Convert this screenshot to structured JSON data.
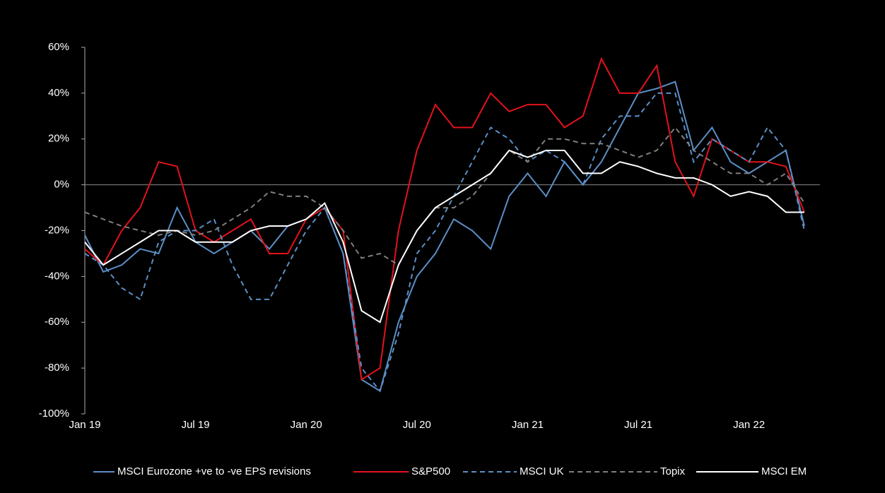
{
  "chart_data": {
    "type": "line",
    "categories": [
      "Jan 19",
      null,
      null,
      null,
      null,
      null,
      "Jul 19",
      null,
      null,
      null,
      null,
      null,
      "Jan 20",
      null,
      null,
      null,
      null,
      null,
      "Jul 20",
      null,
      null,
      null,
      null,
      null,
      "Jan 21",
      null,
      null,
      null,
      null,
      null,
      "Jul 21",
      null,
      null,
      null,
      null,
      null,
      "Jan 22",
      null,
      null,
      null
    ],
    "ylim": [
      -100,
      60
    ],
    "yticks": [
      {
        "value": -100,
        "label": "-100%"
      },
      {
        "value": -80,
        "label": "-80%"
      },
      {
        "value": -60,
        "label": "-60%"
      },
      {
        "value": -40,
        "label": "-40%"
      },
      {
        "value": -20,
        "label": "-20%"
      },
      {
        "value": 0,
        "label": "0%"
      },
      {
        "value": 20,
        "label": "20%"
      },
      {
        "value": 40,
        "label": "40%"
      },
      {
        "value": 60,
        "label": "60%"
      }
    ],
    "series": [
      {
        "name": "MSCI Eurozone +ve to -ve EPS revisions",
        "color": "#5b8fc7",
        "line_style": "solid",
        "values": [
          -22,
          -38,
          -35,
          -28,
          -30,
          -10,
          -25,
          -30,
          -25,
          -20,
          -28,
          -18,
          -15,
          -10,
          -30,
          -85,
          -90,
          -60,
          -40,
          -30,
          -15,
          -20,
          -28,
          -5,
          5,
          -5,
          10,
          0,
          10,
          25,
          40,
          42,
          45,
          15,
          25,
          10,
          5,
          10,
          15,
          -18
        ]
      },
      {
        "name": "S&P500",
        "color": "#e3121b",
        "line_style": "solid",
        "values": [
          -28,
          -35,
          -20,
          -10,
          10,
          8,
          -20,
          -25,
          -20,
          -15,
          -30,
          -30,
          -15,
          -10,
          -20,
          -85,
          -80,
          -20,
          15,
          35,
          25,
          25,
          40,
          32,
          35,
          35,
          25,
          30,
          55,
          40,
          40,
          52,
          10,
          -5,
          20,
          15,
          10,
          10,
          8,
          -12
        ]
      },
      {
        "name": "MSCI UK",
        "color": "#5b8fc7",
        "line_style": "dashed",
        "values": [
          -30,
          -35,
          -45,
          -50,
          -25,
          -20,
          -20,
          -15,
          -35,
          -50,
          -50,
          -35,
          -20,
          -10,
          -30,
          -80,
          -90,
          -65,
          -30,
          -20,
          -5,
          10,
          25,
          20,
          10,
          15,
          10,
          0,
          20,
          30,
          30,
          40,
          40,
          10,
          20,
          15,
          10,
          25,
          15,
          -20
        ]
      },
      {
        "name": "Topix",
        "color": "#7f7f7f",
        "line_style": "dashed",
        "values": [
          -12,
          -15,
          -18,
          -20,
          -22,
          -20,
          -22,
          -20,
          -15,
          -10,
          -3,
          -5,
          -5,
          -10,
          -20,
          -32,
          -30,
          -35,
          -20,
          -10,
          -10,
          -5,
          5,
          15,
          10,
          20,
          20,
          18,
          18,
          15,
          12,
          15,
          25,
          15,
          10,
          5,
          5,
          0,
          5,
          -8
        ]
      },
      {
        "name": "MSCI EM",
        "color": "#ffffff",
        "line_style": "solid",
        "values": [
          -25,
          -35,
          -30,
          -25,
          -20,
          -20,
          -25,
          -25,
          -25,
          -20,
          -18,
          -18,
          -15,
          -8,
          -25,
          -55,
          -60,
          -35,
          -20,
          -10,
          -5,
          0,
          5,
          15,
          12,
          15,
          15,
          5,
          5,
          10,
          8,
          5,
          3,
          3,
          0,
          -5,
          -3,
          -5,
          -12,
          -12
        ]
      }
    ]
  }
}
